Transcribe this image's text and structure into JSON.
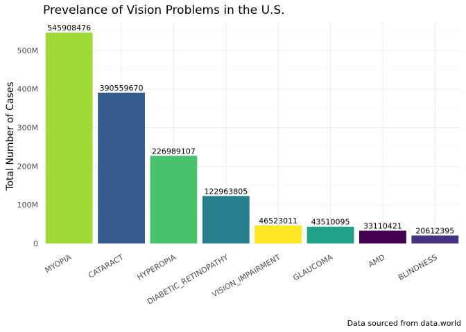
{
  "chart_data": {
    "type": "bar",
    "title": "Prevelance of Vision Problems in the U.S.",
    "xlabel": "",
    "ylabel": "Total Number of Cases",
    "caption": "Data sourced from data.world",
    "categories": [
      "MYOPIA",
      "CATARACT",
      "HYPEROPIA",
      "DIABETIC_RETINOPATHY",
      "VISION_IMPAIRMENT",
      "GLAUCOMA",
      "AMD",
      "BLINDNESS"
    ],
    "values": [
      545908476,
      390559670,
      226989107,
      122963805,
      46523011,
      43510095,
      33110421,
      20612395
    ],
    "value_labels": [
      "545908476",
      "390559670",
      "226989107",
      "122963805",
      "46523011",
      "43510095",
      "33110421",
      "20612395"
    ],
    "colors": [
      "#a0da39",
      "#365c8d",
      "#4ac16d",
      "#277f8e",
      "#fde725",
      "#1fa187",
      "#440154",
      "#46327e"
    ],
    "yticks": [
      0,
      100000000,
      200000000,
      300000000,
      400000000,
      500000000
    ],
    "ytick_labels": [
      "0",
      "100M",
      "200M",
      "300M",
      "400M",
      "500M"
    ],
    "ylim": [
      0,
      573203900
    ],
    "grid": true,
    "legend": "none"
  }
}
